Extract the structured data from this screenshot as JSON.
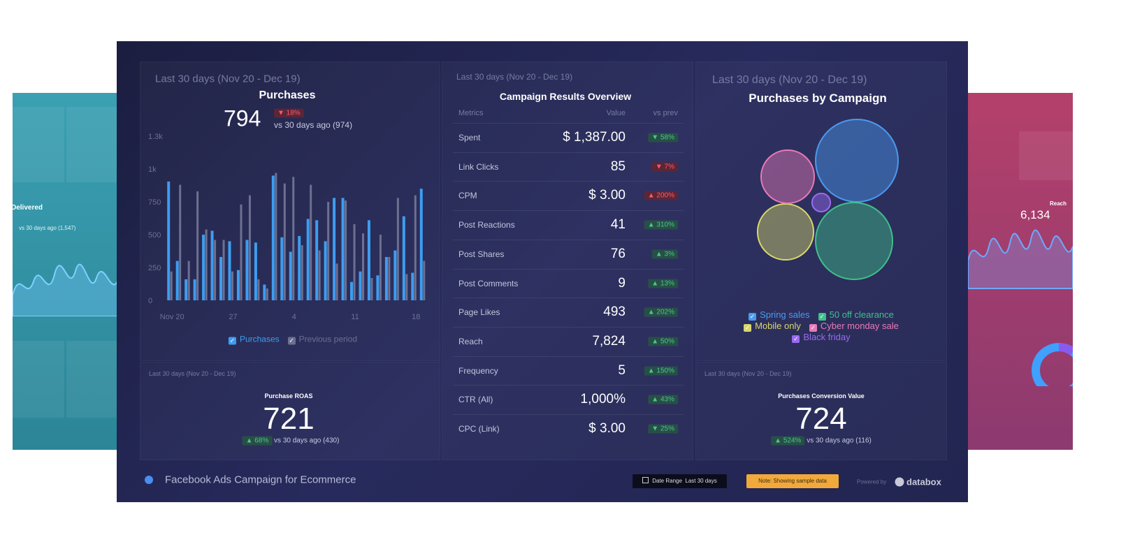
{
  "background": {
    "left": {
      "label": "Delivered",
      "comparison": "vs 30 days ago (1,547)"
    },
    "right": {
      "label": "Reach",
      "value": "6,134"
    }
  },
  "purchases": {
    "period": "Last 30 days (Nov 20 - Dec 19)",
    "title": "Purchases",
    "value": 794,
    "change": "▼ 18%",
    "change_tone": "bad",
    "comparison": "vs 30 days ago (974)",
    "chart": {
      "type": "bar",
      "categories": [
        "Nov 20",
        null,
        null,
        null,
        null,
        null,
        null,
        "27",
        null,
        null,
        null,
        null,
        null,
        null,
        "4",
        null,
        null,
        null,
        null,
        null,
        null,
        "11",
        null,
        null,
        null,
        null,
        null,
        null,
        "18",
        null
      ],
      "series": [
        {
          "name": "Purchases",
          "color": "#3d9df0",
          "values": [
            905,
            300,
            160,
            160,
            500,
            530,
            330,
            450,
            230,
            460,
            440,
            120,
            950,
            480,
            370,
            490,
            620,
            610,
            450,
            780,
            780,
            140,
            220,
            610,
            190,
            330,
            380,
            640,
            210,
            850
          ]
        },
        {
          "name": "Previous period",
          "color": "#6d7090",
          "values": [
            220,
            880,
            300,
            830,
            540,
            460,
            460,
            220,
            730,
            800,
            160,
            90,
            970,
            890,
            940,
            420,
            880,
            380,
            750,
            280,
            760,
            580,
            510,
            170,
            500,
            330,
            780,
            200,
            800,
            300
          ]
        }
      ],
      "ylim": [
        0,
        1250
      ],
      "yticks": [
        0,
        250,
        500,
        750,
        {
          "value": 1000,
          "label": "1k"
        },
        {
          "value": 1250,
          "label": "1.3k"
        }
      ],
      "grid": false
    }
  },
  "roas": {
    "period": "Last 30 days (Nov 20 - Dec 19)",
    "title": "Purchase ROAS",
    "value": 721,
    "change": "▲ 68%",
    "change_tone": "good",
    "comparison": "vs 30 days ago (430)"
  },
  "table": {
    "period": "Last 30 days (Nov 20 - Dec 19)",
    "title": "Campaign Results Overview",
    "columns": [
      "Metrics",
      "Value",
      "vs prev"
    ],
    "rows": [
      {
        "metric": "Spent",
        "value": "$ 1,387.00",
        "change": "▼ 58%",
        "tone": "good"
      },
      {
        "metric": "Link Clicks",
        "value": "85",
        "change": "▼ 7%",
        "tone": "bad"
      },
      {
        "metric": "CPM",
        "value": "$ 3.00",
        "change": "▲ 200%",
        "tone": "bad"
      },
      {
        "metric": "Post Reactions",
        "value": "41",
        "change": "▲ 310%",
        "tone": "good"
      },
      {
        "metric": "Post Shares",
        "value": "76",
        "change": "▲ 3%",
        "tone": "good"
      },
      {
        "metric": "Post Comments",
        "value": "9",
        "change": "▲ 13%",
        "tone": "good"
      },
      {
        "metric": "Page Likes",
        "value": "493",
        "change": "▲ 202%",
        "tone": "good"
      },
      {
        "metric": "Reach",
        "value": "7,824",
        "change": "▲ 50%",
        "tone": "good"
      },
      {
        "metric": "Frequency",
        "value": "5",
        "change": "▲ 150%",
        "tone": "good"
      },
      {
        "metric": "CTR (All)",
        "value": "1,000%",
        "change": "▲ 43%",
        "tone": "good"
      },
      {
        "metric": "CPC (Link)",
        "value": "$ 3.00",
        "change": "▼ 25%",
        "tone": "good"
      }
    ]
  },
  "campaigns": {
    "period": "Last 30 days (Nov 20 - Dec 19)",
    "title": "Purchases by Campaign",
    "chart": {
      "type": "bubble",
      "series": [
        {
          "name": "Spring sales",
          "color": "#4a9af0",
          "value": 284
        },
        {
          "name": "50 off clearance",
          "color": "#3fc08a",
          "value": 247
        },
        {
          "name": "Mobile only",
          "color": "#d8d86a",
          "value": 131
        },
        {
          "name": "Cyber monday sale",
          "color": "#e87ab8",
          "value": 118
        },
        {
          "name": "Black friday",
          "color": "#9a6af0",
          "value": 14
        }
      ]
    }
  },
  "conversion": {
    "period": "Last 30 days (Nov 20 - Dec 19)",
    "title": "Purchases Conversion Value",
    "value": 724,
    "change": "▲ 524%",
    "change_tone": "good",
    "comparison": "vs 30 days ago (116)"
  },
  "dashboard": {
    "title": "Facebook Ads Campaign for Ecommerce",
    "date_range_label": "Date Range",
    "date_range_value": "Last 30 days",
    "note": "Note: Showing sample data",
    "powered_by": "Powered by",
    "brand": "databox"
  }
}
